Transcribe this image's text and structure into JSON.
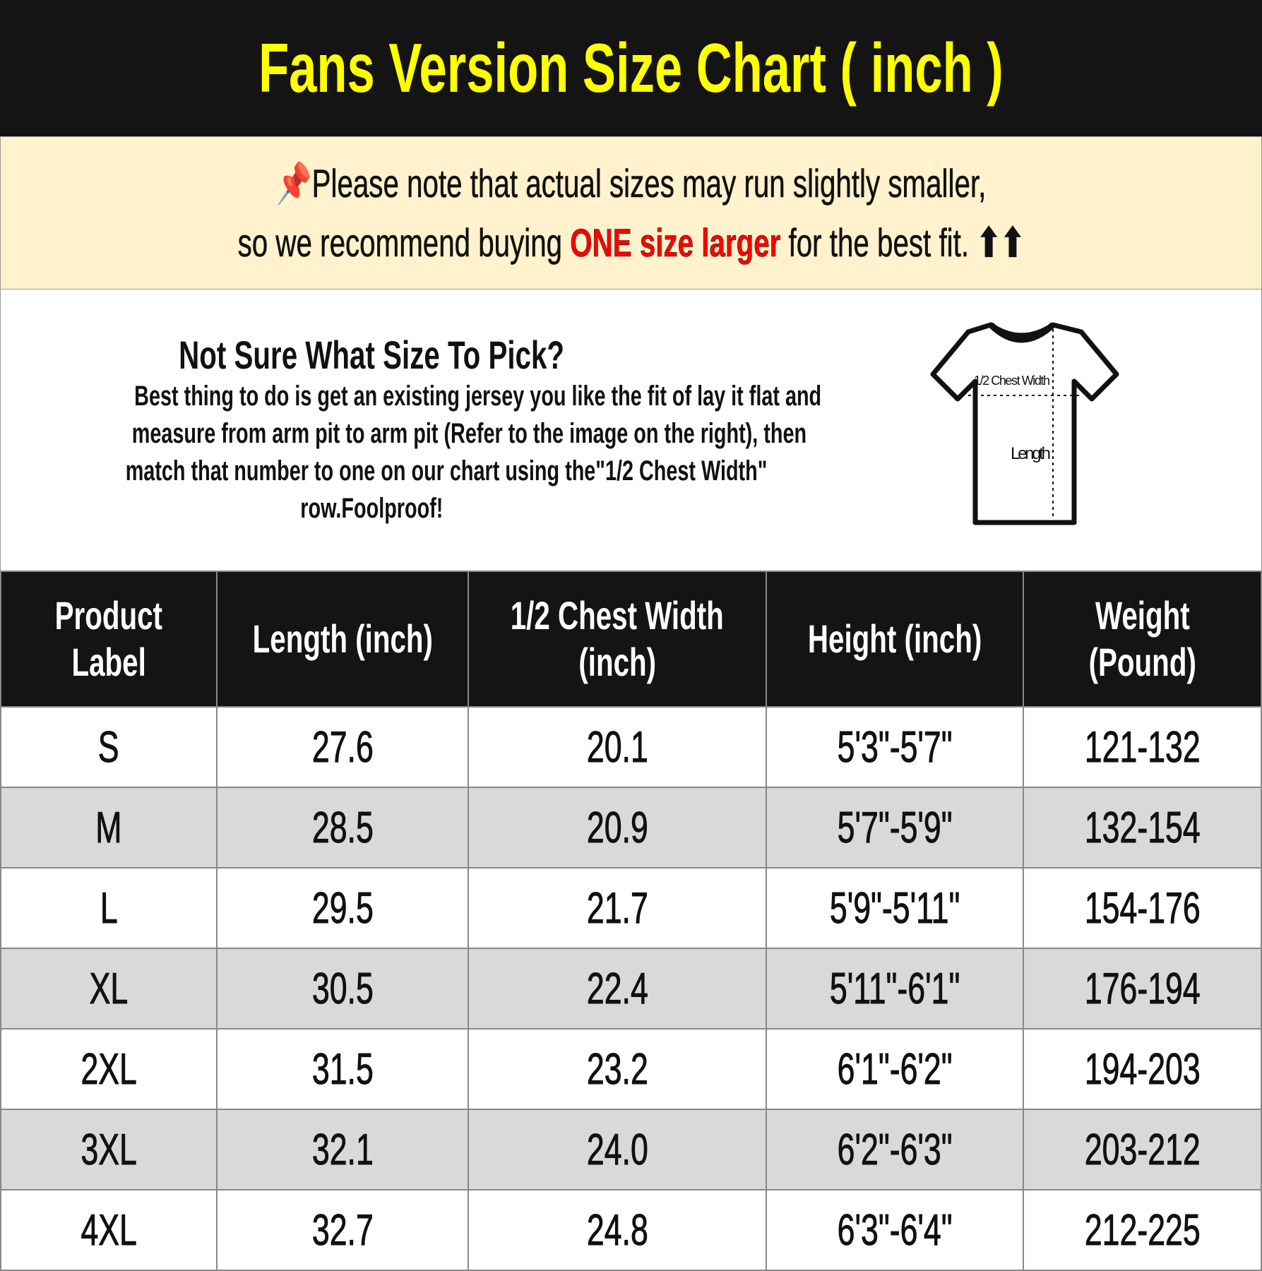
{
  "title": "Fans Version Size Chart ( inch )",
  "note": {
    "icon": "pushpin-icon",
    "line1": "Please note that actual sizes may run slightly smaller,",
    "line2_pre": "so we recommend buying ",
    "line2_highlight": "ONE size larger",
    "line2_post": " for the best fit. ",
    "arrows": "⬆⬆",
    "highlight_color": "#ff0000"
  },
  "info": {
    "heading": "Not Sure What Size To Pick?",
    "lines": [
      "Best thing to do is get an existing jersey you like the fit of lay it flat and",
      "measure from arm pit to arm pit (Refer to the image on the right), then",
      "match that number to one on our chart using the\"1/2 Chest Width\"",
      "row.Foolproof!"
    ],
    "diagram": {
      "chest_label": "1/2 Chest Width",
      "length_label": "Length"
    }
  },
  "table": {
    "headers": [
      [
        "Product",
        "Label"
      ],
      [
        "Length (inch)"
      ],
      [
        "1/2 Chest Width",
        "(inch)"
      ],
      [
        "Height (inch)"
      ],
      [
        "Weight",
        "(Pound)"
      ]
    ],
    "rows": [
      [
        "S",
        "27.6",
        "20.1",
        "5'3\"-5'7\"",
        "121-132"
      ],
      [
        "M",
        "28.5",
        "20.9",
        "5'7\"-5'9\"",
        "132-154"
      ],
      [
        "L",
        "29.5",
        "21.7",
        "5'9\"-5'11\"",
        "154-176"
      ],
      [
        "XL",
        "30.5",
        "22.4",
        "5'11\"-6'1\"",
        "176-194"
      ],
      [
        "2XL",
        "31.5",
        "23.2",
        "6'1\"-6'2\"",
        "194-203"
      ],
      [
        "3XL",
        "32.1",
        "24.0",
        "6'2\"-6'3\"",
        "203-212"
      ],
      [
        "4XL",
        "32.7",
        "24.8",
        "6'3\"-6'4\"",
        "212-225"
      ]
    ]
  }
}
